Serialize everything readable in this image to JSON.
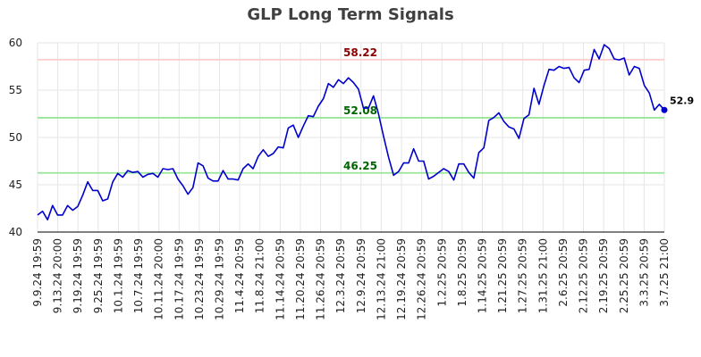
{
  "chart_data": {
    "type": "line",
    "title": "GLP Long Term Signals",
    "xlabel": "",
    "ylabel": "",
    "ylim": [
      40,
      60
    ],
    "yticks": [
      40,
      45,
      50,
      55,
      60
    ],
    "grid": true,
    "x_tick_labels": [
      "9.9.24 19:59",
      "9.13.24 20:00",
      "9.19.24 19:59",
      "9.25.24 19:59",
      "10.1.24 19:59",
      "10.7.24 19:59",
      "10.11.24 20:00",
      "10.17.24 19:59",
      "10.23.24 19:59",
      "10.29.24 19:59",
      "11.4.24 20:59",
      "11.8.24 21:00",
      "11.14.24 20:59",
      "11.20.24 20:59",
      "11.26.24 20:59",
      "12.3.24 20:59",
      "12.9.24 20:59",
      "12.13.24 21:00",
      "12.19.24 20:59",
      "12.26.24 20:59",
      "1.2.25 20:59",
      "1.8.25 20:59",
      "1.14.25 20:59",
      "1.21.25 20:59",
      "1.27.25 20:59",
      "1.31.25 21:00",
      "2.6.25 20:59",
      "2.12.25 20:59",
      "2.19.25 20:59",
      "2.25.25 20:59",
      "3.3.25 20:59",
      "3.7.25 21:00"
    ],
    "series": [
      {
        "color": "#0000cc",
        "values": [
          41.8,
          42.2,
          41.3,
          42.8,
          41.8,
          41.8,
          42.8,
          42.3,
          42.7,
          43.9,
          45.3,
          44.4,
          44.4,
          43.3,
          43.5,
          45.3,
          46.2,
          45.8,
          46.5,
          46.3,
          46.4,
          45.8,
          46.1,
          46.2,
          45.8,
          46.7,
          46.6,
          46.7,
          45.6,
          44.9,
          44.0,
          44.7,
          47.3,
          47.0,
          45.7,
          45.4,
          45.4,
          46.5,
          45.6,
          45.6,
          45.5,
          46.7,
          47.2,
          46.7,
          48.0,
          48.7,
          48.0,
          48.3,
          49.0,
          48.9,
          51.0,
          51.3,
          50.0,
          51.2,
          52.3,
          52.2,
          53.3,
          54.1,
          55.7,
          55.3,
          56.1,
          55.7,
          56.3,
          55.8,
          55.1,
          53.1,
          53.1,
          54.4,
          52.5,
          50.1,
          47.9,
          46.0,
          46.4,
          47.3,
          47.3,
          48.8,
          47.5,
          47.5,
          45.6,
          45.9,
          46.3,
          46.7,
          46.4,
          45.5,
          47.2,
          47.2,
          46.3,
          45.7,
          48.4,
          48.9,
          51.8,
          52.1,
          52.6,
          51.7,
          51.1,
          50.9,
          49.9,
          52.0,
          52.4,
          55.2,
          53.5,
          55.5,
          57.2,
          57.1,
          57.5,
          57.3,
          57.4,
          56.3,
          55.8,
          57.1,
          57.2,
          59.3,
          58.3,
          59.8,
          59.4,
          58.3,
          58.2,
          58.4,
          56.6,
          57.5,
          57.3,
          55.5,
          54.7,
          52.9,
          53.5,
          52.9
        ]
      }
    ],
    "last_value_label": "52.9",
    "reference_lines": [
      {
        "value": 58.22,
        "label": "58.22",
        "line_color": "#ffcccc",
        "label_color": "#8b0000"
      },
      {
        "value": 52.08,
        "label": "52.08",
        "line_color": "#99e699",
        "label_color": "#006400"
      },
      {
        "value": 46.25,
        "label": "46.25",
        "line_color": "#99e699",
        "label_color": "#006400"
      }
    ]
  }
}
